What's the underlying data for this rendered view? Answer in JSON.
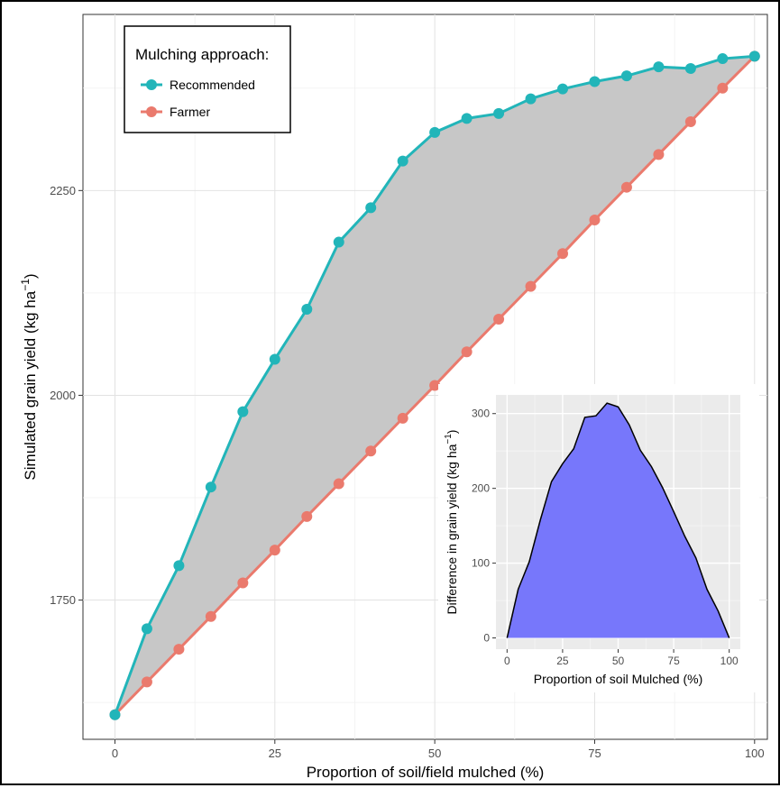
{
  "chart_data": [
    {
      "type": "line",
      "xlabel": "Proportion of soil/field mulched (%)",
      "ylabel": "Simulated grain yield (kg ha",
      "ylabel_sup": "−1",
      "ylabel_close": ")",
      "xlim": [
        -5,
        102
      ],
      "ylim": [
        1580,
        2465
      ],
      "x_ticks": [
        0,
        25,
        50,
        75,
        100
      ],
      "x_tick_labels": [
        "0",
        "25",
        "50",
        "75",
        "100"
      ],
      "y_ticks": [
        1750,
        2000,
        2250
      ],
      "y_tick_labels": [
        "1750",
        "2000",
        "2250"
      ],
      "grid": true,
      "legend_position": "top-left",
      "legend_title": "Mulching approach:",
      "shaded_region_between_series": true,
      "x": [
        0,
        5,
        10,
        15,
        20,
        25,
        30,
        35,
        40,
        45,
        50,
        55,
        60,
        65,
        70,
        75,
        80,
        85,
        90,
        95,
        100
      ],
      "series": [
        {
          "name": "Recommended",
          "color": "#22b5b9",
          "values": [
            1610,
            1715,
            1792,
            1888,
            1980,
            2044,
            2105,
            2187,
            2229,
            2286,
            2321,
            2338,
            2344,
            2362,
            2374,
            2383,
            2390,
            2401,
            2399,
            2411,
            2414
          ]
        },
        {
          "name": "Farmer",
          "color": "#ea7a6d",
          "values": [
            1610,
            1650,
            1690,
            1730,
            1771,
            1811,
            1852,
            1892,
            1932,
            1972,
            2012,
            2053,
            2093,
            2133,
            2173,
            2214,
            2254,
            2294,
            2334,
            2375,
            2414
          ]
        }
      ]
    },
    {
      "type": "area",
      "xlabel": "Proportion of soil Mulched (%)",
      "ylabel": "Difference in grain yield (kg ha",
      "ylabel_sup": "−1",
      "ylabel_close": ")",
      "xlim": [
        -5,
        105
      ],
      "ylim": [
        -15,
        325
      ],
      "x_ticks": [
        0,
        25,
        50,
        75,
        100
      ],
      "x_tick_labels": [
        "0",
        "25",
        "50",
        "75",
        "100"
      ],
      "y_ticks": [
        0,
        100,
        200,
        300
      ],
      "y_tick_labels": [
        "0",
        "100",
        "200",
        "300"
      ],
      "grid": true,
      "fill_color": "#7777fb",
      "x": [
        0,
        5,
        10,
        15,
        20,
        25,
        30,
        35,
        40,
        45,
        50,
        55,
        60,
        65,
        70,
        75,
        80,
        85,
        90,
        95,
        100
      ],
      "values": [
        0,
        65,
        102,
        158,
        209,
        233,
        253,
        295,
        297,
        314,
        309,
        285,
        251,
        229,
        201,
        169,
        136,
        107,
        65,
        36,
        0
      ]
    }
  ]
}
